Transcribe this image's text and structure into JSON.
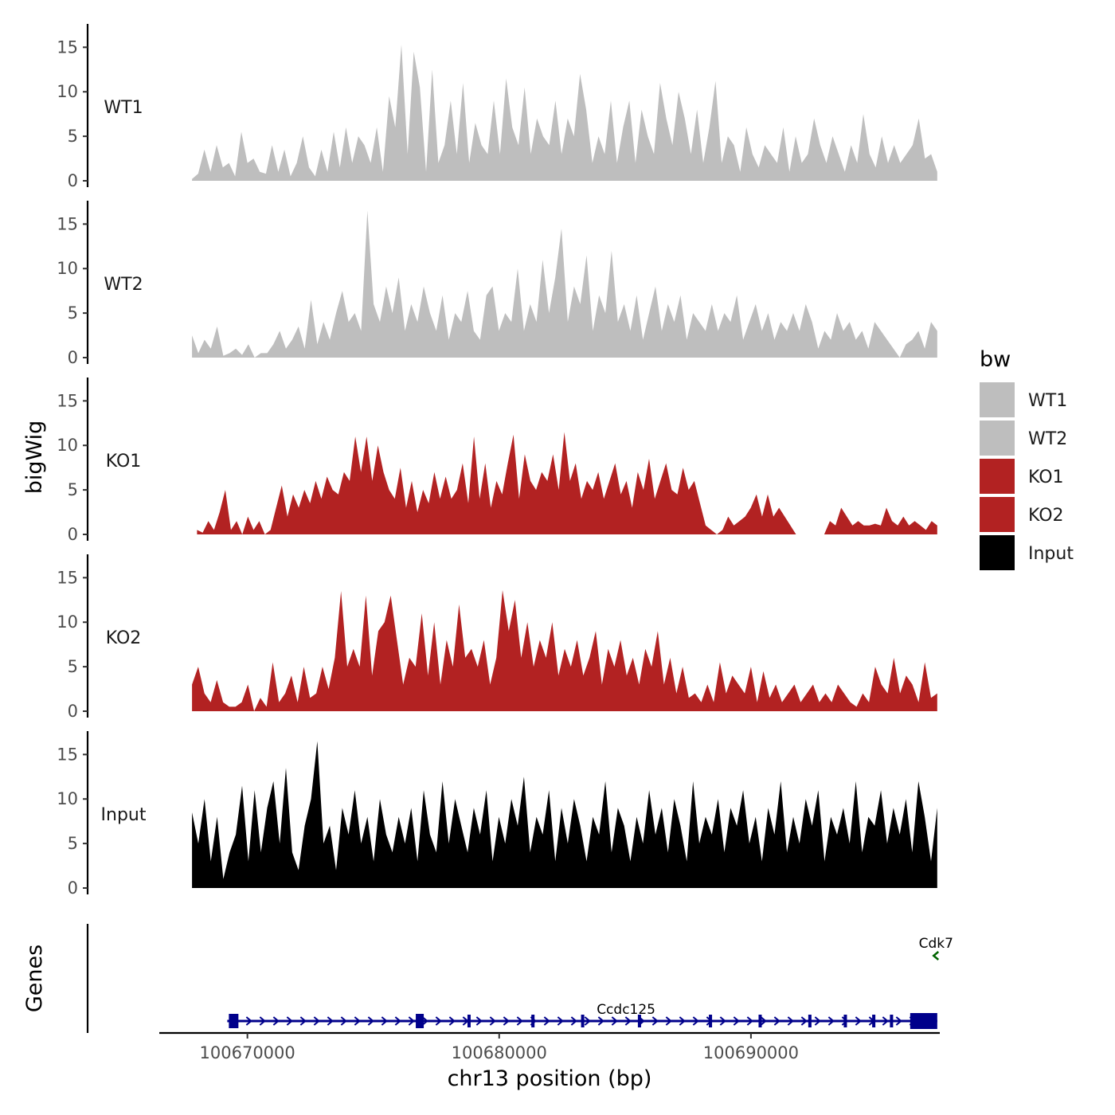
{
  "chart_data": {
    "type": "area",
    "chromosome": "chr13",
    "xlabel": "chr13 position (bp)",
    "ylabel": "bigWig",
    "genes_label": "Genes",
    "xlim": [
      100666500,
      100697500
    ],
    "ylim": [
      0,
      17
    ],
    "xticks": [
      100670000,
      100680000,
      100690000
    ],
    "xtick_labels": [
      "100670000",
      "100680000",
      "100690000"
    ],
    "yticks": [
      0,
      5,
      10,
      15
    ],
    "ytick_labels": [
      "0",
      "5",
      "10",
      "15"
    ],
    "legend": {
      "title": "bw",
      "placement": "right",
      "entries": [
        {
          "label": "WT1",
          "color": "#bebebe"
        },
        {
          "label": "WT2",
          "color": "#bebebe"
        },
        {
          "label": "KO1",
          "color": "#b22222"
        },
        {
          "label": "KO2",
          "color": "#b22222"
        },
        {
          "label": "Input",
          "color": "#000000"
        }
      ]
    },
    "series": [
      {
        "name": "WT1",
        "color": "#bebebe",
        "x_start": 100667800,
        "x_end": 100697400,
        "values": [
          0.2,
          0.8,
          3.5,
          1,
          4,
          1.5,
          2,
          0.5,
          5.5,
          2,
          2.5,
          1,
          0.8,
          4,
          1,
          3.5,
          0.5,
          2,
          5,
          1.5,
          0.5,
          3.5,
          1,
          5.5,
          1.5,
          6,
          2,
          5,
          4,
          2,
          6,
          1,
          9.5,
          6,
          15.3,
          3,
          14.5,
          10.5,
          1,
          12.5,
          2,
          4,
          9,
          3,
          11,
          2,
          6.5,
          4,
          3,
          9,
          3,
          11.5,
          6,
          4,
          10.5,
          3,
          7,
          5,
          4,
          9,
          3,
          7,
          5,
          12,
          8,
          2,
          5,
          3,
          9,
          2,
          6,
          9,
          2,
          8,
          5,
          3,
          11,
          7,
          4,
          10,
          7,
          3,
          8,
          2,
          6,
          11.2,
          2,
          5,
          4,
          1,
          6,
          3,
          1.5,
          4,
          3,
          2,
          6,
          1,
          5,
          2,
          3,
          7,
          4,
          2,
          5,
          3,
          1,
          4,
          2,
          7.5,
          3,
          1.5,
          5,
          2,
          4,
          2,
          3,
          4,
          7,
          2.5,
          3,
          1
        ]
      },
      {
        "name": "WT2",
        "color": "#bebebe",
        "x_start": 100667800,
        "x_end": 100697400,
        "values": [
          2.5,
          0.5,
          2,
          1,
          3.5,
          0.2,
          0.5,
          1,
          0.3,
          1.5,
          0,
          0.5,
          0.5,
          1.5,
          3,
          1,
          2,
          3.5,
          1,
          6.5,
          1.5,
          4,
          2,
          5,
          7.5,
          4,
          5,
          3,
          16.5,
          6,
          4,
          8,
          5,
          9,
          3,
          6,
          4,
          8,
          5,
          3,
          7,
          2,
          5,
          4,
          7.5,
          3,
          2,
          7,
          8,
          3,
          5,
          4,
          10,
          3,
          6,
          4,
          11,
          5,
          9,
          14.5,
          4,
          8,
          6,
          11.5,
          3,
          7,
          5,
          12,
          4,
          6,
          3,
          7,
          2,
          5,
          8,
          3,
          6,
          4,
          7,
          2,
          5,
          4,
          3,
          6,
          3,
          5,
          4,
          7,
          2,
          4,
          6,
          3,
          5,
          2,
          4,
          3,
          5,
          3,
          6,
          4,
          1,
          3,
          2,
          5,
          3,
          4,
          2,
          3,
          1,
          4,
          3,
          2,
          1,
          0,
          1.5,
          2,
          3,
          1,
          4,
          3
        ]
      },
      {
        "name": "KO1",
        "color": "#b22222",
        "x_start": 100668000,
        "x_end": 100697400,
        "values": [
          0.5,
          0.2,
          1.5,
          0.5,
          2.5,
          5,
          0.5,
          1.5,
          0,
          2,
          0.5,
          1.5,
          0,
          0.5,
          3,
          5.5,
          2,
          4.5,
          3,
          5,
          3.5,
          6,
          4,
          6.5,
          5,
          4.5,
          7,
          6,
          11,
          7,
          11,
          6,
          10,
          7,
          5,
          4,
          7.5,
          3,
          6,
          2.5,
          5,
          3.5,
          7,
          4,
          6.5,
          4,
          5,
          8,
          3.5,
          11,
          4,
          8,
          3,
          6,
          4.5,
          8,
          11.2,
          4,
          9,
          6,
          5,
          7,
          6,
          9,
          5,
          11.5,
          6,
          8,
          4,
          6,
          5,
          7,
          4,
          6,
          8,
          4.5,
          6,
          3,
          7,
          5,
          8.5,
          4,
          6,
          8,
          5,
          4.5,
          7.5,
          5,
          6,
          3.5,
          1,
          0.5,
          0,
          0.5,
          2,
          1,
          1.5,
          2,
          3,
          4.5,
          2,
          4.5,
          2,
          3,
          2,
          1,
          0,
          0,
          0,
          0,
          0,
          0,
          1.5,
          1,
          3,
          2,
          1,
          1.5,
          1,
          1,
          1.2,
          1,
          3,
          1.5,
          1,
          2,
          1,
          1.5,
          1,
          0.5,
          1.5,
          1
        ]
      },
      {
        "name": "KO2",
        "color": "#b22222",
        "x_start": 100667800,
        "x_end": 100697400,
        "values": [
          3,
          5,
          2,
          1,
          3.5,
          1,
          0.5,
          0.5,
          1,
          3,
          0,
          1.5,
          0.5,
          5.5,
          1,
          2,
          4,
          1,
          5,
          1.5,
          2,
          5,
          2.5,
          6,
          13.5,
          5,
          7,
          5,
          13,
          4,
          9,
          10,
          13,
          8,
          3,
          6,
          5,
          11,
          4,
          10,
          3,
          8,
          5,
          12,
          6,
          7,
          5,
          8,
          3,
          6,
          13.6,
          9,
          12.5,
          6,
          10,
          5,
          8,
          6,
          10,
          4,
          7,
          5,
          8,
          4,
          6,
          9,
          3,
          7,
          5,
          8,
          4,
          6,
          3,
          7,
          5,
          9,
          3,
          6,
          2,
          5,
          1.5,
          2,
          1,
          3,
          1,
          5.5,
          2,
          4,
          3,
          2,
          5,
          1,
          4.5,
          1.5,
          3,
          1,
          2,
          3,
          1,
          2,
          3,
          1,
          2,
          1,
          3,
          2,
          1,
          0.5,
          2,
          1,
          5,
          3,
          2,
          6,
          2,
          4,
          3,
          1,
          5.5,
          1.5,
          2
        ]
      },
      {
        "name": "Input",
        "color": "#000000",
        "x_start": 100667800,
        "x_end": 100697400,
        "values": [
          8.5,
          5,
          10,
          3,
          8,
          1,
          4,
          6,
          11.5,
          3,
          11,
          4,
          9,
          12,
          5,
          13.5,
          4,
          2,
          7,
          10,
          16.5,
          5,
          7,
          2,
          9,
          6,
          11,
          5,
          8,
          3,
          10,
          6,
          4,
          8,
          5,
          9,
          3,
          11,
          6,
          4,
          12,
          5,
          10,
          7,
          4,
          9,
          6,
          11,
          3,
          8,
          5,
          10,
          7,
          12.5,
          4,
          8,
          6,
          11,
          3,
          9,
          5,
          10,
          7,
          3,
          8,
          6,
          12,
          4,
          9,
          7,
          3,
          8,
          5,
          11,
          6,
          9,
          4,
          10,
          7,
          3,
          12,
          5,
          8,
          6,
          10,
          4,
          9,
          7,
          11,
          5,
          8,
          3,
          9,
          6,
          12,
          4,
          8,
          5,
          10,
          7,
          11,
          3,
          8,
          6,
          9,
          5,
          12,
          4,
          8,
          7,
          11,
          5,
          9,
          6,
          10,
          4,
          12,
          8,
          3,
          9
        ]
      }
    ],
    "genes": [
      {
        "name": "Ccdc125",
        "color": "#00008b",
        "strand": "+",
        "start": 100669200,
        "end": 100697400
      },
      {
        "name": "Cdk7",
        "color": "#006400",
        "strand": "-",
        "start": 100697250,
        "end": 100697450
      }
    ]
  }
}
